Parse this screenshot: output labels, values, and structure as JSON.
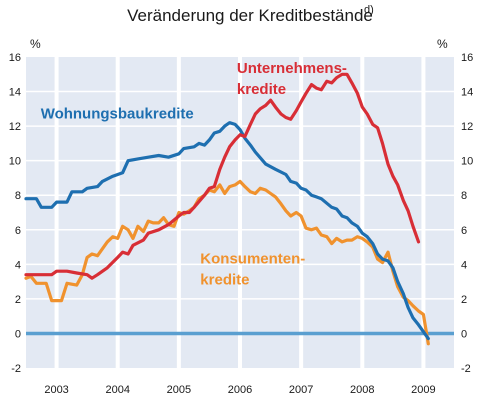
{
  "chart_data": {
    "type": "line",
    "title": "Veränderung der Kreditbestände",
    "title_superscript": "d)",
    "unit_left": "%",
    "unit_right": "%",
    "ylim": [
      -2,
      16
    ],
    "yticks": [
      -2,
      0,
      2,
      4,
      6,
      8,
      10,
      12,
      14,
      16
    ],
    "ytick_labels": [
      "-2",
      "0",
      "2",
      "4",
      "6",
      "8",
      "10",
      "12",
      "14",
      "16"
    ],
    "xlim": [
      2002.5,
      2009.5
    ],
    "xtick_labels": [
      "2003",
      "2004",
      "2005",
      "2006",
      "2007",
      "2008",
      "2009"
    ],
    "x_tick_positions": [
      2003,
      2004,
      2005,
      2006,
      2007,
      2008,
      2009
    ],
    "grid": true,
    "zero_line": true,
    "background_color": "#e3e9f3",
    "series": [
      {
        "name": "Wohnungsbaukredite",
        "label_lines": [
          "Wohnungsbaukredite"
        ],
        "color": "#1e6fb0",
        "points": [
          [
            2002.5,
            7.8
          ],
          [
            2002.67,
            7.8
          ],
          [
            2002.75,
            7.3
          ],
          [
            2002.92,
            7.3
          ],
          [
            2003.0,
            7.6
          ],
          [
            2003.17,
            7.6
          ],
          [
            2003.25,
            8.2
          ],
          [
            2003.42,
            8.2
          ],
          [
            2003.5,
            8.4
          ],
          [
            2003.67,
            8.5
          ],
          [
            2003.75,
            8.8
          ],
          [
            2003.92,
            9.1
          ],
          [
            2004.0,
            9.2
          ],
          [
            2004.08,
            9.3
          ],
          [
            2004.17,
            10.0
          ],
          [
            2004.33,
            10.1
          ],
          [
            2004.5,
            10.2
          ],
          [
            2004.67,
            10.3
          ],
          [
            2004.83,
            10.2
          ],
          [
            2005.0,
            10.4
          ],
          [
            2005.08,
            10.7
          ],
          [
            2005.25,
            10.8
          ],
          [
            2005.33,
            11.0
          ],
          [
            2005.42,
            10.9
          ],
          [
            2005.5,
            11.2
          ],
          [
            2005.58,
            11.6
          ],
          [
            2005.67,
            11.7
          ],
          [
            2005.75,
            12.0
          ],
          [
            2005.83,
            12.2
          ],
          [
            2005.92,
            12.1
          ],
          [
            2006.0,
            11.8
          ],
          [
            2006.08,
            11.3
          ],
          [
            2006.17,
            10.9
          ],
          [
            2006.25,
            10.5
          ],
          [
            2006.42,
            9.8
          ],
          [
            2006.58,
            9.5
          ],
          [
            2006.75,
            9.2
          ],
          [
            2006.83,
            8.8
          ],
          [
            2006.92,
            8.7
          ],
          [
            2007.0,
            8.4
          ],
          [
            2007.08,
            8.3
          ],
          [
            2007.17,
            8.0
          ],
          [
            2007.25,
            7.9
          ],
          [
            2007.33,
            7.8
          ],
          [
            2007.5,
            7.3
          ],
          [
            2007.58,
            7.2
          ],
          [
            2007.67,
            6.8
          ],
          [
            2007.75,
            6.7
          ],
          [
            2007.83,
            6.4
          ],
          [
            2007.92,
            6.2
          ],
          [
            2008.0,
            5.8
          ],
          [
            2008.08,
            5.6
          ],
          [
            2008.17,
            5.2
          ],
          [
            2008.25,
            4.6
          ],
          [
            2008.33,
            4.3
          ],
          [
            2008.42,
            4.2
          ],
          [
            2008.5,
            3.8
          ],
          [
            2008.58,
            3.0
          ],
          [
            2008.67,
            2.3
          ],
          [
            2008.75,
            1.5
          ],
          [
            2008.83,
            0.9
          ],
          [
            2008.92,
            0.5
          ],
          [
            2009.0,
            0.1
          ],
          [
            2009.08,
            -0.3
          ]
        ]
      },
      {
        "name": "Unternehmenskredite",
        "label_lines": [
          "Unternehmens-",
          "kredite"
        ],
        "color": "#d82e36",
        "points": [
          [
            2002.5,
            3.4
          ],
          [
            2002.67,
            3.4
          ],
          [
            2002.83,
            3.4
          ],
          [
            2002.92,
            3.4
          ],
          [
            2003.0,
            3.6
          ],
          [
            2003.17,
            3.6
          ],
          [
            2003.33,
            3.5
          ],
          [
            2003.5,
            3.4
          ],
          [
            2003.58,
            3.2
          ],
          [
            2003.67,
            3.4
          ],
          [
            2003.83,
            3.8
          ],
          [
            2004.0,
            4.4
          ],
          [
            2004.08,
            4.7
          ],
          [
            2004.17,
            4.6
          ],
          [
            2004.25,
            5.1
          ],
          [
            2004.42,
            5.4
          ],
          [
            2004.5,
            5.8
          ],
          [
            2004.67,
            6.0
          ],
          [
            2004.83,
            6.3
          ],
          [
            2005.0,
            6.8
          ],
          [
            2005.08,
            7.0
          ],
          [
            2005.17,
            7.0
          ],
          [
            2005.25,
            7.3
          ],
          [
            2005.42,
            8.0
          ],
          [
            2005.5,
            8.4
          ],
          [
            2005.58,
            8.5
          ],
          [
            2005.67,
            9.5
          ],
          [
            2005.75,
            10.2
          ],
          [
            2005.83,
            10.8
          ],
          [
            2005.92,
            11.2
          ],
          [
            2006.0,
            11.5
          ],
          [
            2006.08,
            11.4
          ],
          [
            2006.17,
            12.1
          ],
          [
            2006.25,
            12.7
          ],
          [
            2006.33,
            13.0
          ],
          [
            2006.42,
            13.2
          ],
          [
            2006.5,
            13.5
          ],
          [
            2006.58,
            13.1
          ],
          [
            2006.67,
            12.7
          ],
          [
            2006.75,
            12.5
          ],
          [
            2006.83,
            12.4
          ],
          [
            2006.92,
            12.9
          ],
          [
            2007.0,
            13.4
          ],
          [
            2007.08,
            13.9
          ],
          [
            2007.17,
            14.4
          ],
          [
            2007.25,
            14.2
          ],
          [
            2007.33,
            14.1
          ],
          [
            2007.42,
            14.6
          ],
          [
            2007.5,
            14.5
          ],
          [
            2007.58,
            14.8
          ],
          [
            2007.67,
            15.0
          ],
          [
            2007.75,
            15.0
          ],
          [
            2007.83,
            14.5
          ],
          [
            2007.92,
            13.9
          ],
          [
            2008.0,
            13.1
          ],
          [
            2008.08,
            12.7
          ],
          [
            2008.17,
            12.1
          ],
          [
            2008.25,
            11.9
          ],
          [
            2008.33,
            11.0
          ],
          [
            2008.42,
            9.8
          ],
          [
            2008.5,
            9.1
          ],
          [
            2008.58,
            8.6
          ],
          [
            2008.67,
            7.7
          ],
          [
            2008.75,
            7.1
          ],
          [
            2008.83,
            6.2
          ],
          [
            2008.92,
            5.3
          ]
        ]
      },
      {
        "name": "Konsumentenkredite",
        "label_lines": [
          "Konsumenten-",
          "kredite"
        ],
        "color": "#f0922e",
        "points": [
          [
            2002.5,
            3.2
          ],
          [
            2002.58,
            3.3
          ],
          [
            2002.67,
            2.9
          ],
          [
            2002.83,
            2.9
          ],
          [
            2002.92,
            1.9
          ],
          [
            2003.0,
            1.9
          ],
          [
            2003.08,
            1.9
          ],
          [
            2003.17,
            2.9
          ],
          [
            2003.33,
            2.8
          ],
          [
            2003.42,
            3.4
          ],
          [
            2003.5,
            4.4
          ],
          [
            2003.58,
            4.6
          ],
          [
            2003.67,
            4.5
          ],
          [
            2003.75,
            4.9
          ],
          [
            2003.83,
            5.3
          ],
          [
            2003.92,
            5.6
          ],
          [
            2004.0,
            5.5
          ],
          [
            2004.08,
            6.2
          ],
          [
            2004.17,
            6.0
          ],
          [
            2004.25,
            5.5
          ],
          [
            2004.33,
            6.2
          ],
          [
            2004.42,
            5.9
          ],
          [
            2004.5,
            6.5
          ],
          [
            2004.58,
            6.4
          ],
          [
            2004.67,
            6.4
          ],
          [
            2004.75,
            6.7
          ],
          [
            2004.83,
            6.3
          ],
          [
            2004.92,
            6.2
          ],
          [
            2005.0,
            7.0
          ],
          [
            2005.08,
            6.9
          ],
          [
            2005.17,
            7.1
          ],
          [
            2005.25,
            7.3
          ],
          [
            2005.33,
            7.8
          ],
          [
            2005.42,
            8.0
          ],
          [
            2005.5,
            8.3
          ],
          [
            2005.58,
            8.2
          ],
          [
            2005.67,
            8.6
          ],
          [
            2005.75,
            8.1
          ],
          [
            2005.83,
            8.5
          ],
          [
            2005.92,
            8.6
          ],
          [
            2006.0,
            8.8
          ],
          [
            2006.08,
            8.5
          ],
          [
            2006.17,
            8.2
          ],
          [
            2006.25,
            8.1
          ],
          [
            2006.33,
            8.4
          ],
          [
            2006.42,
            8.3
          ],
          [
            2006.5,
            8.1
          ],
          [
            2006.58,
            7.9
          ],
          [
            2006.67,
            7.5
          ],
          [
            2006.75,
            7.1
          ],
          [
            2006.83,
            6.8
          ],
          [
            2006.92,
            7.0
          ],
          [
            2007.0,
            6.8
          ],
          [
            2007.08,
            6.1
          ],
          [
            2007.17,
            6.0
          ],
          [
            2007.25,
            6.1
          ],
          [
            2007.33,
            5.7
          ],
          [
            2007.42,
            5.6
          ],
          [
            2007.5,
            5.2
          ],
          [
            2007.58,
            5.5
          ],
          [
            2007.67,
            5.3
          ],
          [
            2007.75,
            5.4
          ],
          [
            2007.83,
            5.4
          ],
          [
            2007.92,
            5.6
          ],
          [
            2008.0,
            5.5
          ],
          [
            2008.08,
            5.3
          ],
          [
            2008.17,
            5.0
          ],
          [
            2008.25,
            4.3
          ],
          [
            2008.33,
            4.1
          ],
          [
            2008.42,
            4.7
          ],
          [
            2008.5,
            3.6
          ],
          [
            2008.58,
            2.7
          ],
          [
            2008.67,
            2.1
          ],
          [
            2008.75,
            1.9
          ],
          [
            2008.83,
            1.6
          ],
          [
            2008.92,
            1.3
          ],
          [
            2009.0,
            1.1
          ],
          [
            2009.08,
            -0.6
          ]
        ]
      }
    ]
  }
}
